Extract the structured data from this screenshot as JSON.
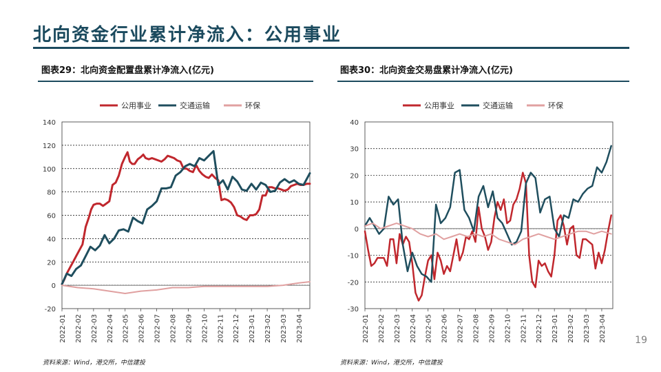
{
  "page": {
    "title": "北向资金行业累计净流入：公用事业",
    "page_number": "19",
    "colors": {
      "title": "#1b4a5e",
      "utilities": "#c0272d",
      "transport": "#1f4e5e",
      "env": "#e0a0a0"
    }
  },
  "chart_data": [
    {
      "type": "line",
      "title": "图表29：北向资金配置盘累计净流入(亿元)",
      "source": "资料来源：Wind，港交所，中信建投",
      "xlabel": "",
      "ylabel": "",
      "ylim": [
        -20,
        140
      ],
      "yticks": [
        "140",
        "120",
        "100",
        "80",
        "60",
        "40",
        "20",
        "0",
        "-20"
      ],
      "xticks": [
        "2022-01",
        "2022-02",
        "2022-03",
        "2022-04",
        "2022-05",
        "2022-06",
        "2022-07",
        "2022-08",
        "2022-09",
        "2022-10",
        "2022-11",
        "2022-12",
        "2023-01",
        "2023-02",
        "2023-03",
        "2023-04"
      ],
      "grid": true,
      "legend_position": "top",
      "series": [
        {
          "name": "公用事业",
          "color": "#c0272d",
          "width": 3,
          "x": [
            0,
            0.15,
            0.3,
            0.5,
            0.7,
            0.9,
            1.1,
            1.3,
            1.5,
            1.7,
            1.85,
            2.0,
            2.2,
            2.4,
            2.6,
            2.8,
            3.0,
            3.2,
            3.4,
            3.6,
            3.8,
            4.0,
            4.15,
            4.3,
            4.45,
            4.6,
            4.8,
            5.0,
            5.15,
            5.3,
            5.5,
            5.7,
            5.9,
            6.1,
            6.3,
            6.5,
            6.7,
            6.9,
            7.1,
            7.3,
            7.5,
            7.7,
            7.9,
            8.1,
            8.3,
            8.5,
            8.7,
            8.9,
            9.1,
            9.3,
            9.5,
            9.7,
            9.9,
            10.1,
            10.3,
            10.5,
            10.7,
            10.9,
            11.1,
            11.3,
            11.5,
            11.7,
            11.9,
            12.1,
            12.3,
            12.5,
            12.7,
            12.9,
            13.1,
            13.3,
            13.5,
            13.7,
            13.9,
            14.1,
            14.3,
            14.5,
            14.7,
            14.9,
            15.1,
            15.3,
            15.5,
            15.7
          ],
          "values": [
            1,
            5,
            10,
            15,
            20,
            25,
            30,
            35,
            50,
            58,
            65,
            69,
            70,
            70,
            68,
            70,
            72,
            86,
            88,
            94,
            104,
            110,
            114,
            106,
            104,
            104,
            108,
            110,
            112,
            109,
            108,
            109,
            108,
            107,
            106,
            108,
            111,
            110,
            109,
            107,
            106,
            100,
            100,
            98,
            97,
            103,
            98,
            95,
            93,
            92,
            95,
            92,
            90,
            73,
            74,
            73,
            71,
            67,
            60,
            59,
            57,
            56,
            60,
            60,
            61,
            65,
            77,
            77,
            84,
            84,
            83,
            83,
            82,
            81,
            82,
            85,
            86,
            87,
            86,
            86,
            87,
            87
          ]
        },
        {
          "name": "交通运输",
          "color": "#1f4e5e",
          "width": 3,
          "x": [
            0,
            0.3,
            0.6,
            0.9,
            1.2,
            1.5,
            1.8,
            2.1,
            2.4,
            2.7,
            3.0,
            3.3,
            3.6,
            3.9,
            4.2,
            4.5,
            4.8,
            5.1,
            5.4,
            5.7,
            6.0,
            6.3,
            6.6,
            6.9,
            7.2,
            7.5,
            7.8,
            8.1,
            8.4,
            8.7,
            9.0,
            9.3,
            9.6,
            9.9,
            10.2,
            10.5,
            10.8,
            11.1,
            11.4,
            11.7,
            12.0,
            12.3,
            12.6,
            12.9,
            13.2,
            13.5,
            13.8,
            14.1,
            14.4,
            14.7,
            15.0,
            15.3,
            15.7
          ],
          "values": [
            1,
            10,
            8,
            14,
            17,
            25,
            33,
            30,
            34,
            43,
            36,
            40,
            47,
            48,
            46,
            58,
            55,
            53,
            65,
            68,
            72,
            83,
            83,
            84,
            94,
            97,
            102,
            104,
            102,
            109,
            107,
            111,
            115,
            86,
            90,
            82,
            93,
            89,
            82,
            81,
            87,
            82,
            88,
            86,
            80,
            81,
            88,
            91,
            88,
            90,
            87,
            86,
            96
          ]
        },
        {
          "name": "环保",
          "color": "#e0a0a0",
          "width": 2,
          "x": [
            0,
            1,
            2,
            3,
            4,
            5,
            6,
            7,
            8,
            9,
            10,
            11,
            12,
            13,
            14,
            15,
            15.7
          ],
          "values": [
            0,
            -2,
            -3,
            -5,
            -7,
            -5,
            -4,
            -2,
            -2,
            -1,
            -1,
            -1,
            -1,
            -1,
            0,
            2,
            3
          ]
        }
      ]
    },
    {
      "type": "line",
      "title": "图表30：北向资金交易盘累计净流入(亿元)",
      "source": "资料来源：Wind，港交所，中信建投",
      "xlabel": "",
      "ylabel": "",
      "ylim": [
        -30,
        40
      ],
      "yticks": [
        "40",
        "30",
        "20",
        "10",
        "0",
        "-10",
        "-20",
        "-30"
      ],
      "xticks": [
        "2022-01",
        "2022-02",
        "2022-03",
        "2022-04",
        "2022-05",
        "2022-06",
        "2022-07",
        "2022-08",
        "2022-09",
        "2022-10",
        "2022-11",
        "2022-12",
        "2023-01",
        "2023-02",
        "2023-03",
        "2023-04"
      ],
      "grid": true,
      "legend_position": "top",
      "series": [
        {
          "name": "公用事业",
          "color": "#c0272d",
          "width": 2.5,
          "x": [
            0,
            0.2,
            0.4,
            0.6,
            0.8,
            1.0,
            1.2,
            1.4,
            1.6,
            1.8,
            2.0,
            2.2,
            2.4,
            2.6,
            2.8,
            3.0,
            3.2,
            3.4,
            3.6,
            3.8,
            4.0,
            4.2,
            4.4,
            4.6,
            4.8,
            5.0,
            5.2,
            5.4,
            5.6,
            5.8,
            6.0,
            6.2,
            6.4,
            6.6,
            6.8,
            7.0,
            7.2,
            7.4,
            7.6,
            7.8,
            8.0,
            8.2,
            8.4,
            8.6,
            8.8,
            9.0,
            9.2,
            9.4,
            9.6,
            9.8,
            10.0,
            10.2,
            10.4,
            10.6,
            10.8,
            11.0,
            11.2,
            11.4,
            11.6,
            11.8,
            12.0,
            12.2,
            12.4,
            12.6,
            12.8,
            13.0,
            13.2,
            13.4,
            13.6,
            13.8,
            14.0,
            14.2,
            14.4,
            14.6,
            14.8,
            15.0,
            15.2,
            15.4,
            15.6
          ],
          "values": [
            -1,
            -8,
            -14,
            -13,
            -11,
            -11,
            -11,
            -14,
            -4,
            -4,
            -13,
            -2,
            -6,
            -3,
            -5,
            -13,
            -24,
            -27,
            -25,
            -18,
            -12,
            -10,
            -19,
            -9,
            -12,
            -17,
            -14,
            -16,
            -10,
            -4,
            -12,
            -9,
            -3,
            -4,
            -1,
            -5,
            8,
            0,
            -3,
            -8,
            -5,
            4,
            10,
            7,
            11,
            2,
            3,
            9,
            11,
            15,
            21,
            17,
            -10,
            -20,
            -22,
            -12,
            -14,
            -13,
            -16,
            -18,
            -10,
            3,
            5,
            1,
            -6,
            0,
            1,
            -10,
            -11,
            -4,
            -4,
            -5,
            -6,
            -15,
            -9,
            -13,
            -8,
            -1,
            5
          ]
        },
        {
          "name": "交通运输",
          "color": "#1f4e5e",
          "width": 2.5,
          "x": [
            0,
            0.3,
            0.6,
            0.9,
            1.2,
            1.5,
            1.8,
            2.1,
            2.4,
            2.7,
            3.0,
            3.3,
            3.6,
            3.9,
            4.2,
            4.5,
            4.8,
            5.1,
            5.4,
            5.7,
            6.0,
            6.3,
            6.6,
            6.9,
            7.2,
            7.5,
            7.8,
            8.1,
            8.4,
            8.7,
            9.0,
            9.3,
            9.6,
            9.9,
            10.2,
            10.5,
            10.8,
            11.1,
            11.4,
            11.7,
            12.0,
            12.3,
            12.6,
            12.9,
            13.2,
            13.5,
            13.8,
            14.1,
            14.4,
            14.7,
            15.0,
            15.3,
            15.6
          ],
          "values": [
            1,
            4,
            1,
            -2,
            0,
            12,
            9,
            11,
            -6,
            -16,
            -9,
            -14,
            -17,
            -18,
            -20,
            9,
            2,
            4,
            8,
            21,
            22,
            7,
            4,
            -1,
            12,
            16,
            8,
            14,
            4,
            2,
            -2,
            -6,
            -5,
            -1,
            17,
            21,
            19,
            6,
            11,
            12,
            0,
            -3,
            5,
            4,
            11,
            10,
            13,
            15,
            16,
            23,
            21,
            25,
            31
          ]
        },
        {
          "name": "环保",
          "color": "#e0a0a0",
          "width": 2,
          "x": [
            0,
            0.5,
            1,
            1.5,
            2,
            2.5,
            3,
            3.5,
            4,
            4.5,
            5,
            5.5,
            6,
            6.5,
            7,
            7.5,
            8,
            8.5,
            9,
            9.5,
            10,
            10.5,
            11,
            11.5,
            12,
            12.5,
            13,
            13.5,
            14,
            14.5,
            15,
            15.6
          ],
          "values": [
            1,
            2,
            0,
            1,
            2,
            1,
            0,
            -2,
            -3,
            -2,
            -4,
            -3,
            -2,
            -3,
            -2,
            -3,
            -2,
            -4,
            -5,
            -6,
            -4,
            -3,
            -2,
            -3,
            -4,
            -3,
            -2,
            -1,
            -1,
            -2,
            -1,
            -2
          ]
        }
      ]
    }
  ]
}
